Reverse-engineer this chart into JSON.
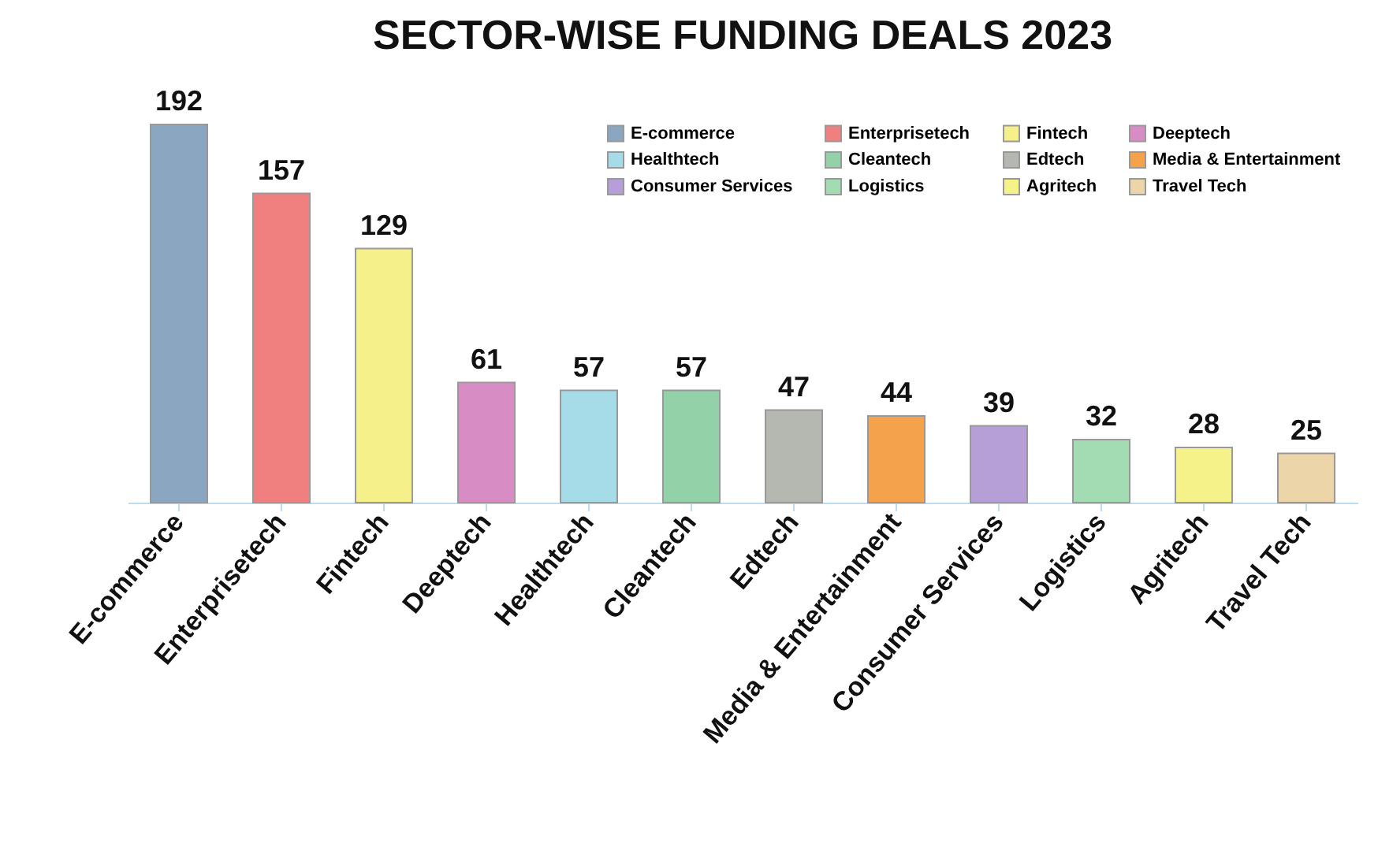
{
  "chart_data": {
    "type": "bar",
    "title": "SECTOR-WISE FUNDING DEALS 2023",
    "categories": [
      "E-commerce",
      "Enterprisetech",
      "Fintech",
      "Deeptech",
      "Healthtech",
      "Cleantech",
      "Edtech",
      "Media & Entertainment",
      "Consumer Services",
      "Logistics",
      "Agritech",
      "Travel Tech"
    ],
    "series": [
      {
        "name": "E-commerce",
        "color": "#8aa6c1",
        "values": [
          192,
          null,
          null,
          null,
          null,
          null,
          null,
          null,
          null,
          null,
          null,
          null
        ]
      },
      {
        "name": "Enterprisetech",
        "color": "#f07f7f",
        "values": [
          null,
          157,
          null,
          null,
          null,
          null,
          null,
          null,
          null,
          null,
          null,
          null
        ]
      },
      {
        "name": "Fintech",
        "color": "#f5f08a",
        "values": [
          null,
          null,
          129,
          null,
          null,
          null,
          null,
          null,
          null,
          null,
          null,
          null
        ]
      },
      {
        "name": "Deeptech",
        "color": "#d88cc4",
        "values": [
          null,
          null,
          null,
          61,
          null,
          null,
          null,
          null,
          null,
          null,
          null,
          null
        ]
      },
      {
        "name": "Healthtech",
        "color": "#a6dce8",
        "values": [
          null,
          null,
          null,
          null,
          57,
          null,
          null,
          null,
          null,
          null,
          null,
          null
        ]
      },
      {
        "name": "Cleantech",
        "color": "#93d1a8",
        "values": [
          null,
          null,
          null,
          null,
          null,
          57,
          null,
          null,
          null,
          null,
          null,
          null
        ]
      },
      {
        "name": "Edtech",
        "color": "#b5b8b0",
        "values": [
          null,
          null,
          null,
          null,
          null,
          null,
          47,
          null,
          null,
          null,
          null,
          null
        ]
      },
      {
        "name": "Media & Entertainment",
        "color": "#f4a24c",
        "values": [
          null,
          null,
          null,
          null,
          null,
          null,
          null,
          44,
          null,
          null,
          null,
          null
        ]
      },
      {
        "name": "Consumer Services",
        "color": "#b59fd6",
        "values": [
          null,
          null,
          null,
          null,
          null,
          null,
          null,
          null,
          39,
          null,
          null,
          null
        ]
      },
      {
        "name": "Logistics",
        "color": "#a3dbb3",
        "values": [
          null,
          null,
          null,
          null,
          null,
          null,
          null,
          null,
          null,
          32,
          null,
          null
        ]
      },
      {
        "name": "Agritech",
        "color": "#f5f28a",
        "values": [
          null,
          null,
          null,
          null,
          null,
          null,
          null,
          null,
          null,
          null,
          28,
          null
        ]
      },
      {
        "name": "Travel Tech",
        "color": "#ecd5a8",
        "values": [
          null,
          null,
          null,
          null,
          null,
          null,
          null,
          null,
          null,
          null,
          null,
          25
        ]
      }
    ],
    "data_labels": true,
    "grid": false,
    "legend": "top right"
  }
}
